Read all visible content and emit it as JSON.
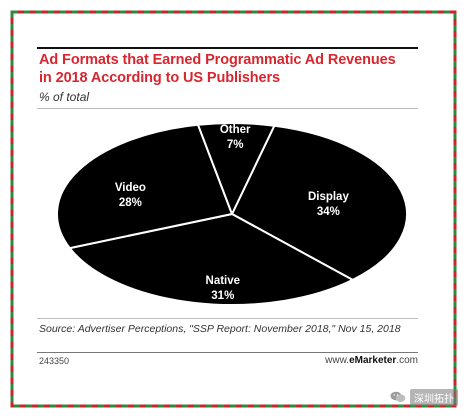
{
  "chart_data": {
    "type": "pie",
    "title": "Ad Formats that Earned Programmatic Ad Revenues in 2018 According to US Publishers",
    "subtitle": "% of total",
    "categories": [
      "Display",
      "Native",
      "Video",
      "Other"
    ],
    "values": [
      34,
      31,
      28,
      7
    ],
    "labels": {
      "Display": "34%",
      "Native": "31%",
      "Video": "28%",
      "Other": "7%"
    },
    "source": "Source: Advertiser Perceptions, \"SSP Report: November 2018,\" Nov 15, 2018",
    "chart_id": "243350",
    "brand_prefix": "www.",
    "brand_name": "eMarketer",
    "brand_suffix": ".com",
    "colors": {
      "slice_fill": "#000000",
      "slice_border": "#ffffff",
      "title": "#d8262f",
      "frame_red": "#c8262d",
      "frame_green": "#2e8b3e"
    }
  },
  "watermark": {
    "text": "深圳拓扑"
  }
}
